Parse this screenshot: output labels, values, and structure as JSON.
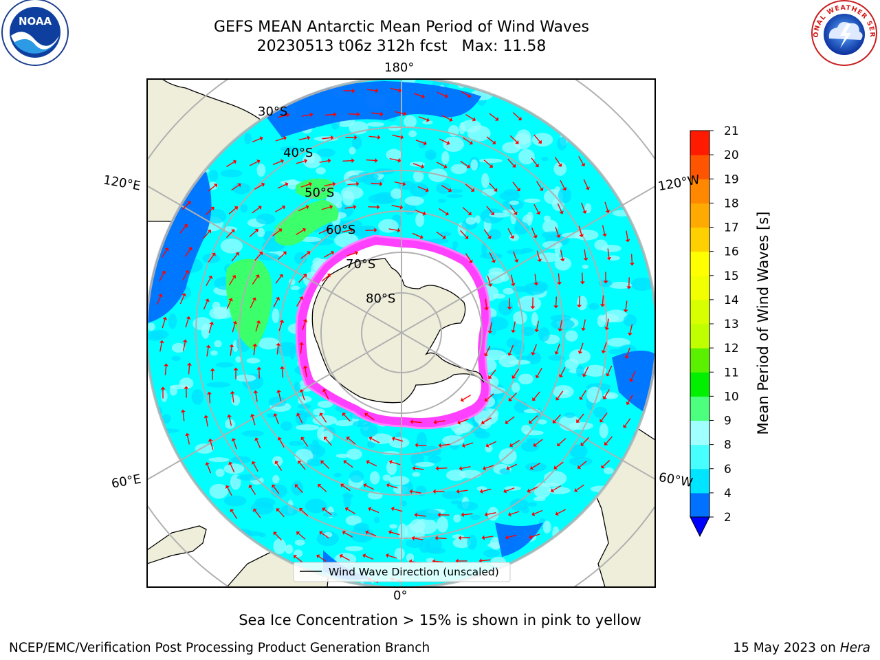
{
  "title": "GEFS MEAN Antarctic Mean Period of Wind Waves",
  "subtitle": "20230513 t06z 312h fcst   Max: 11.58",
  "map": {
    "longitude_labels": {
      "top": "180°",
      "bottom": "0°",
      "upper_left": "120°E",
      "upper_right": "120°W",
      "lower_left": "60°E",
      "lower_right": "60°W"
    },
    "latitude_labels": [
      "30°S",
      "40°S",
      "50°S",
      "60°S",
      "70°S",
      "80°S"
    ],
    "legend_label": "Wind Wave Direction (unscaled)",
    "arrow_color": "#ff0000",
    "land_color": "#efeedb",
    "ice_color": "#ff40ff"
  },
  "colorbar": {
    "label": "Mean Period of Wind Waves [s]",
    "ticks": [
      "2",
      "4",
      "6",
      "8",
      "9",
      "10",
      "11",
      "12",
      "13",
      "14",
      "15",
      "16",
      "17",
      "18",
      "19",
      "20",
      "21"
    ],
    "colors": [
      "#0072ff",
      "#00e5ff",
      "#48ffff",
      "#a0ffff",
      "#4dff7f",
      "#00f000",
      "#5af000",
      "#c0ff00",
      "#d8ff00",
      "#f2ff00",
      "#ffff00",
      "#ffd000",
      "#ffaa00",
      "#ff8800",
      "#ff5500",
      "#ff1a00"
    ],
    "under_color": "#0000ff"
  },
  "note": "Sea Ice Concentration > 15% is shown in pink to yellow",
  "footer_left": "NCEP/EMC/Verification Post Processing Product Generation Branch",
  "footer_right_date": "15 May 2023 on",
  "footer_right_machine": "Hera",
  "logos": {
    "noaa_text": "NOAA",
    "nws_text": "NATIONAL WEATHER SERVICE"
  }
}
